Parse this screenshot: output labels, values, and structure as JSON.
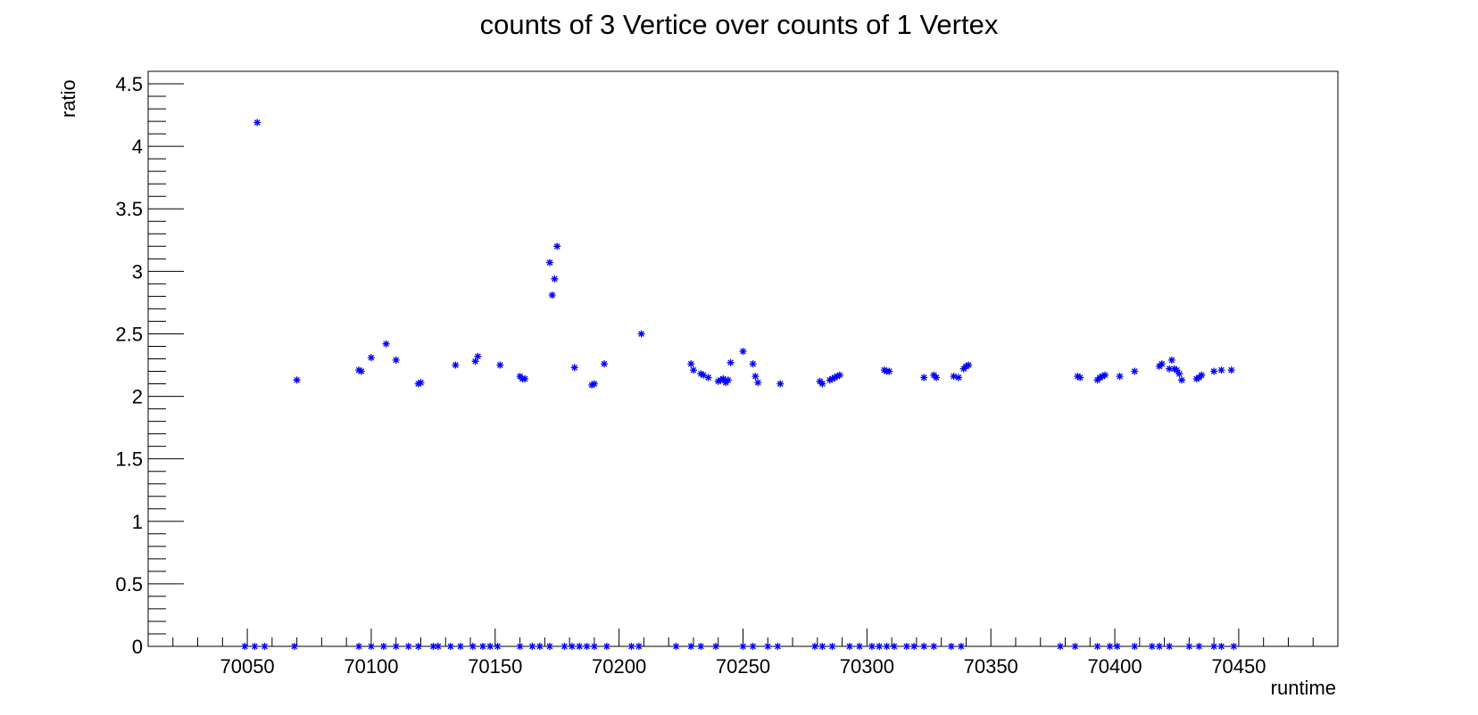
{
  "chart_data": {
    "type": "scatter",
    "title": "counts of 3 Vertice over counts of 1 Vertex",
    "xlabel": "runtime",
    "ylabel": "ratio",
    "xlim": [
      70010,
      70490
    ],
    "ylim": [
      0,
      4.6
    ],
    "x_ticks": [
      70050,
      70100,
      70150,
      70200,
      70250,
      70300,
      70350,
      70400,
      70450
    ],
    "x_tick_labels": [
      "70050",
      "70100",
      "70150",
      "70200",
      "70250",
      "70300",
      "70350",
      "70400",
      "70450"
    ],
    "y_ticks": [
      0,
      0.5,
      1,
      1.5,
      2,
      2.5,
      3,
      3.5,
      4,
      4.5
    ],
    "y_tick_labels": [
      "0",
      "0.5",
      "1",
      "1.5",
      "2",
      "2.5",
      "3",
      "3.5",
      "4",
      "4.5"
    ],
    "grid": false,
    "marker": "asterisk",
    "marker_color": "#0000ff",
    "series": [
      {
        "x": [
          70054,
          70070,
          70095,
          70096,
          70100,
          70106,
          70110,
          70119,
          70120,
          70134,
          70142,
          70143,
          70152,
          70160,
          70161,
          70162,
          70172,
          70173,
          70174,
          70175,
          70182,
          70189,
          70190,
          70194,
          70209,
          70229,
          70230,
          70233,
          70234,
          70236,
          70240,
          70241,
          70242,
          70243,
          70244,
          70245,
          70250,
          70254,
          70255,
          70256,
          70265,
          70281,
          70282,
          70285,
          70286,
          70287,
          70288,
          70289,
          70307,
          70308,
          70309,
          70323,
          70327,
          70328,
          70335,
          70337,
          70339,
          70340,
          70341,
          70385,
          70386,
          70393,
          70394,
          70395,
          70396,
          70402,
          70408,
          70418,
          70419,
          70422,
          70423,
          70424,
          70425,
          70426,
          70427,
          70433,
          70434,
          70435,
          70440,
          70443,
          70447
        ],
        "y": [
          4.19,
          2.13,
          2.21,
          2.2,
          2.31,
          2.42,
          2.29,
          2.1,
          2.11,
          2.25,
          2.28,
          2.32,
          2.25,
          2.16,
          2.14,
          2.14,
          3.07,
          2.81,
          2.94,
          3.2,
          2.23,
          2.09,
          2.1,
          2.26,
          2.5,
          2.26,
          2.21,
          2.18,
          2.17,
          2.15,
          2.12,
          2.13,
          2.14,
          2.11,
          2.13,
          2.27,
          2.36,
          2.26,
          2.16,
          2.11,
          2.1,
          2.12,
          2.1,
          2.13,
          2.14,
          2.15,
          2.16,
          2.17,
          2.21,
          2.2,
          2.2,
          2.15,
          2.17,
          2.15,
          2.16,
          2.15,
          2.22,
          2.24,
          2.25,
          2.16,
          2.15,
          2.13,
          2.15,
          2.16,
          2.17,
          2.16,
          2.2,
          2.24,
          2.26,
          2.22,
          2.29,
          2.22,
          2.21,
          2.18,
          2.13,
          2.14,
          2.15,
          2.17,
          2.2,
          2.21,
          2.21
        ]
      },
      {
        "x": [
          70049,
          70053,
          70057,
          70069,
          70095,
          70100,
          70105,
          70110,
          70115,
          70119,
          70125,
          70127,
          70132,
          70136,
          70141,
          70145,
          70148,
          70151,
          70160,
          70165,
          70168,
          70172,
          70178,
          70181,
          70184,
          70187,
          70190,
          70195,
          70205,
          70208,
          70223,
          70229,
          70233,
          70239,
          70250,
          70254,
          70260,
          70264,
          70279,
          70282,
          70286,
          70293,
          70297,
          70302,
          70305,
          70308,
          70311,
          70316,
          70319,
          70323,
          70327,
          70334,
          70338,
          70378,
          70384,
          70393,
          70398,
          70401,
          70408,
          70415,
          70418,
          70422,
          70430,
          70434,
          70440,
          70443,
          70448
        ],
        "y": [
          0,
          0,
          0,
          0,
          0,
          0,
          0,
          0,
          0,
          0,
          0,
          0,
          0,
          0,
          0,
          0,
          0,
          0,
          0,
          0,
          0,
          0,
          0,
          0,
          0,
          0,
          0,
          0,
          0,
          0,
          0,
          0,
          0,
          0,
          0,
          0,
          0,
          0,
          0,
          0,
          0,
          0,
          0,
          0,
          0,
          0,
          0,
          0,
          0,
          0,
          0,
          0,
          0,
          0,
          0,
          0,
          0,
          0,
          0,
          0,
          0,
          0,
          0,
          0,
          0,
          0,
          0
        ]
      }
    ]
  }
}
